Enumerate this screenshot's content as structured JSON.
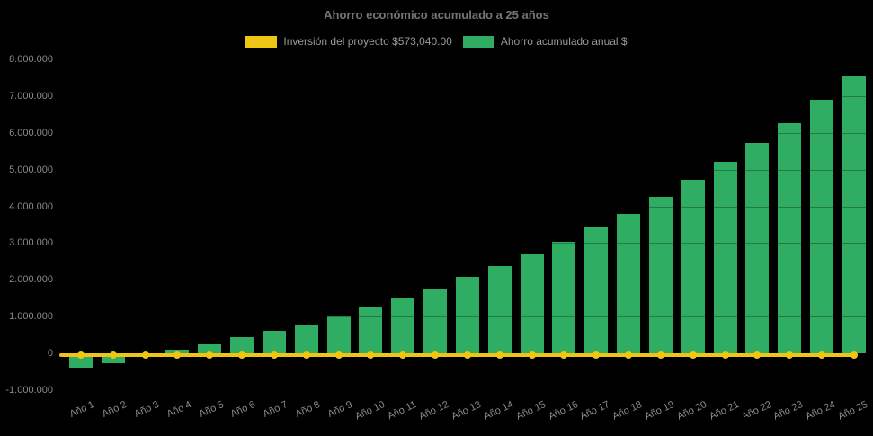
{
  "title": "Ahorro económico acumulado a 25 años",
  "colors": {
    "background": "#000000",
    "bar": "#2fae63",
    "investment_line": "#eec513",
    "title_text": "#757575",
    "legend_text": "#9a9a9a",
    "axis_text": "#8b8b8b"
  },
  "legend": {
    "items": [
      {
        "label": "Inversión del proyecto $573,040.00",
        "color": "#eec513",
        "series": "investment"
      },
      {
        "label": "Ahorro acumulado anual $",
        "color": "#2fae63",
        "series": "savings"
      }
    ]
  },
  "chart_data": {
    "type": "bar",
    "title": "Ahorro económico acumulado a 25 años",
    "background": "#000000",
    "legend_position": "top",
    "grid": "subtle",
    "ylim": [
      -1000000,
      8000000
    ],
    "ytick_step": 1000000,
    "ytick_values": [
      8000000,
      7000000,
      6000000,
      5000000,
      4000000,
      3000000,
      2000000,
      1000000,
      0,
      -1000000
    ],
    "ytick_labels": [
      "8.000.000",
      "7.000.000",
      "6.000.000",
      "5.000.000",
      "4.000.000",
      "3.000.000",
      "2.000.000",
      "1.000.000",
      "0",
      "-1.000.000"
    ],
    "categories": [
      "Año 1",
      "Año 2",
      "Año 3",
      "Año 4",
      "Año 5",
      "Año 6",
      "Año 7",
      "Año 8",
      "Año 9",
      "Año 10",
      "Año 11",
      "Año 12",
      "Año 13",
      "Año 14",
      "Año 15",
      "Año 16",
      "Año 17",
      "Año 18",
      "Año 19",
      "Año 20",
      "Año 21",
      "Año 22",
      "Año 23",
      "Año 24",
      "Año 25"
    ],
    "series": [
      {
        "name": "Ahorro acumulado anual $",
        "type": "bar",
        "color": "#2fae63",
        "values": [
          -400000,
          -270000,
          -40000,
          100000,
          250000,
          440000,
          610000,
          790000,
          1020000,
          1240000,
          1510000,
          1770000,
          2070000,
          2370000,
          2700000,
          3040000,
          3440000,
          3800000,
          4270000,
          4720000,
          5220000,
          5730000,
          6270000,
          6910000,
          7540000
        ]
      },
      {
        "name": "Inversión del proyecto $573,040.00",
        "type": "line",
        "color": "#eec513",
        "constant_value": -60000
      }
    ]
  }
}
